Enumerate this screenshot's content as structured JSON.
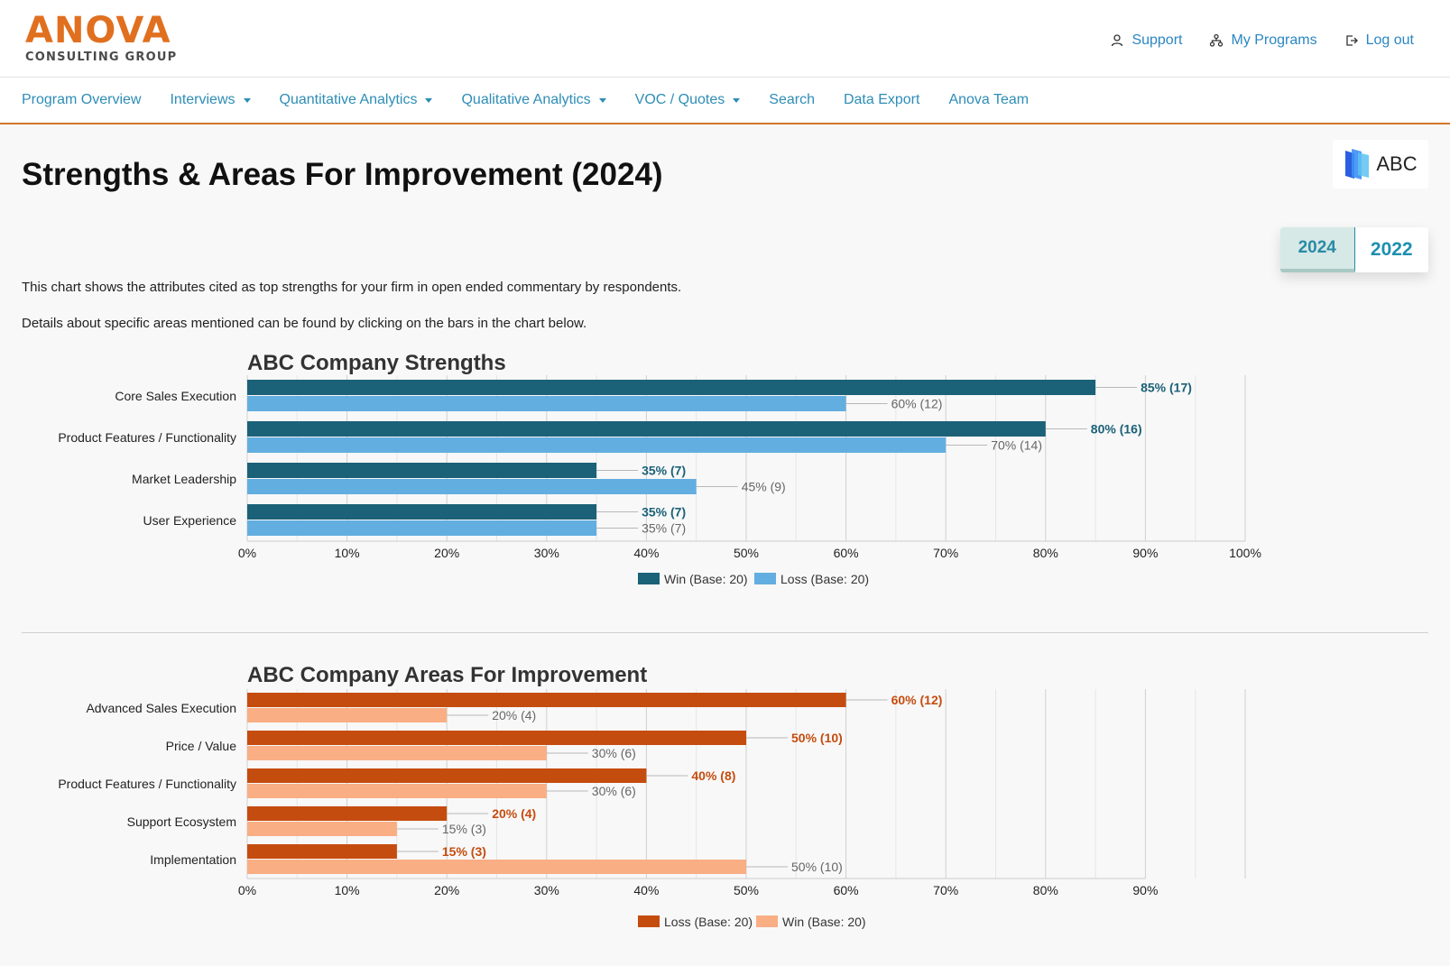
{
  "header": {
    "logo_main": "ANOVA",
    "logo_sub": "CONSULTING GROUP",
    "links": [
      {
        "label": "Support",
        "icon": "user-icon"
      },
      {
        "label": "My Programs",
        "icon": "sitemap-icon"
      },
      {
        "label": "Log out",
        "icon": "logout-icon"
      }
    ]
  },
  "nav": {
    "items": [
      {
        "label": "Program Overview",
        "dropdown": false
      },
      {
        "label": "Interviews",
        "dropdown": true
      },
      {
        "label": "Quantitative Analytics",
        "dropdown": true
      },
      {
        "label": "Qualitative Analytics",
        "dropdown": true
      },
      {
        "label": "VOC / Quotes",
        "dropdown": true
      },
      {
        "label": "Search",
        "dropdown": false
      },
      {
        "label": "Data Export",
        "dropdown": false
      },
      {
        "label": "Anova Team",
        "dropdown": false
      }
    ]
  },
  "page": {
    "title": "Strengths & Areas For Improvement (2024)",
    "client_logo_text": "ABC",
    "year_active": "2024",
    "year_other": "2022",
    "desc1": "This chart shows the attributes cited as top strengths for your firm in open ended commentary by respondents.",
    "desc2": "Details about specific areas mentioned can be found by clicking on the bars in the chart below."
  },
  "colors": {
    "brand_orange": "#e0701f",
    "link_blue": "#2e8db6",
    "win_dark": "#1b6178",
    "loss_light": "#63aee0",
    "loss_dark": "#c54c0f",
    "win_light": "#f9ae84"
  },
  "chart_data": [
    {
      "type": "bar",
      "orientation": "horizontal",
      "title": "ABC Company Strengths",
      "categories": [
        "Core Sales Execution",
        "Product Features / Functionality",
        "Market Leadership",
        "User Experience"
      ],
      "series": [
        {
          "name": "Win (Base: 20)",
          "color": "#1b6178",
          "values": [
            85,
            80,
            35,
            35
          ],
          "counts": [
            17,
            16,
            7,
            7
          ],
          "labels": [
            "85% (17)",
            "80% (16)",
            "35% (7)",
            "35% (7)"
          ]
        },
        {
          "name": "Loss (Base: 20)",
          "color": "#63aee0",
          "values": [
            60,
            70,
            45,
            35
          ],
          "counts": [
            12,
            14,
            9,
            7
          ],
          "labels": [
            "60% (12)",
            "70% (14)",
            "45% (9)",
            "35% (7)"
          ]
        }
      ],
      "xlim": [
        0,
        100
      ],
      "xticks": [
        "0%",
        "10%",
        "20%",
        "30%",
        "40%",
        "50%",
        "60%",
        "70%",
        "80%",
        "90%",
        "100%"
      ],
      "legend": "bottom-center",
      "grid": true
    },
    {
      "type": "bar",
      "orientation": "horizontal",
      "title": "ABC Company Areas For Improvement",
      "categories": [
        "Advanced Sales Execution",
        "Price / Value",
        "Product Features / Functionality",
        "Support Ecosystem",
        "Implementation"
      ],
      "series": [
        {
          "name": "Loss (Base: 20)",
          "color": "#c54c0f",
          "values": [
            60,
            50,
            40,
            20,
            15
          ],
          "counts": [
            12,
            10,
            8,
            4,
            3
          ],
          "labels": [
            "60% (12)",
            "50% (10)",
            "40% (8)",
            "20% (4)",
            "15% (3)"
          ]
        },
        {
          "name": "Win (Base: 20)",
          "color": "#f9ae84",
          "values": [
            20,
            30,
            30,
            15,
            50
          ],
          "counts": [
            4,
            6,
            6,
            3,
            10
          ],
          "labels": [
            "20% (4)",
            "30% (6)",
            "30% (6)",
            "15% (3)",
            "50% (10)"
          ]
        }
      ],
      "xlim": [
        0,
        90
      ],
      "xticks": [
        "0%",
        "10%",
        "20%",
        "30%",
        "40%",
        "50%",
        "60%",
        "70%",
        "80%",
        "90%"
      ],
      "legend": "bottom-center",
      "grid": true
    }
  ]
}
